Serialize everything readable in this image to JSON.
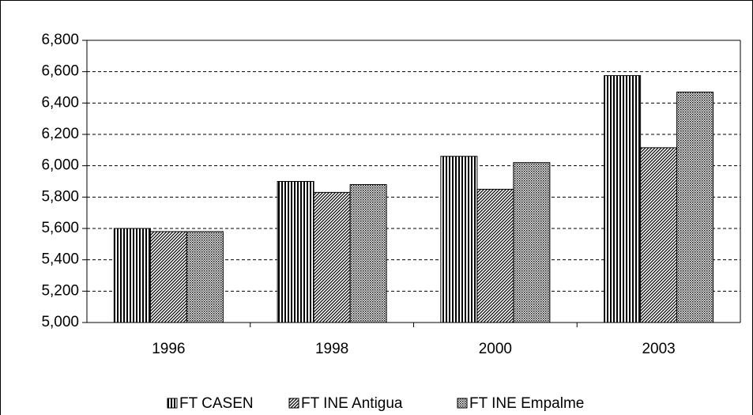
{
  "chart_data": {
    "type": "bar",
    "categories": [
      "1996",
      "1998",
      "2000",
      "2003"
    ],
    "series": [
      {
        "name": "FT CASEN",
        "color": "#000000",
        "pattern": "vertical",
        "values": [
          5600,
          5900,
          6060,
          6575
        ]
      },
      {
        "name": "FT INE Antigua",
        "color": "#000000",
        "pattern": "diagonal",
        "values": [
          5580,
          5830,
          5850,
          6115
        ]
      },
      {
        "name": "FT INE Empalme",
        "color": "#000000",
        "pattern": "checker",
        "values": [
          5580,
          5880,
          6020,
          6470
        ]
      }
    ],
    "ylim": [
      5000,
      6800
    ],
    "yticks": [
      {
        "value": 5000,
        "label": "5,000"
      },
      {
        "value": 5200,
        "label": "5,200"
      },
      {
        "value": 5400,
        "label": "5,400"
      },
      {
        "value": 5600,
        "label": "5,600"
      },
      {
        "value": 5800,
        "label": "5,800"
      },
      {
        "value": 6000,
        "label": "6,000"
      },
      {
        "value": 6200,
        "label": "6,200"
      },
      {
        "value": 6400,
        "label": "6,400"
      },
      {
        "value": 6600,
        "label": "6,600"
      },
      {
        "value": 6800,
        "label": "6,800"
      }
    ],
    "grid": true,
    "legend": "bottom"
  }
}
